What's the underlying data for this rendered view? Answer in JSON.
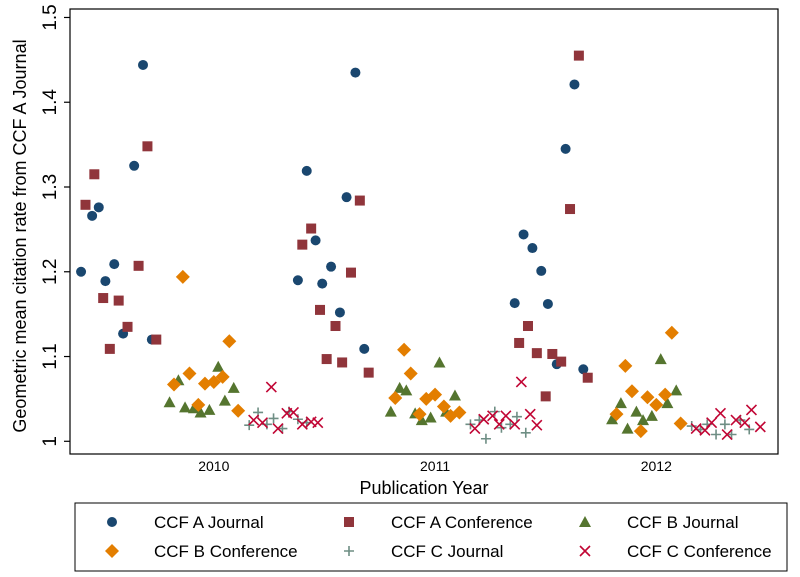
{
  "chart_data": {
    "type": "scatter",
    "xlabel": "Publication Year",
    "ylabel": "Geometric mean citation rate from CCF A Journal",
    "ylim": [
      0.985,
      1.51
    ],
    "xlim": [
      -0.15,
      3.05
    ],
    "yticks": [
      1,
      1.1,
      1.2,
      1.3,
      1.4,
      1.5
    ],
    "ytick_labels": [
      "1",
      "1.1",
      "1.2",
      "1.3",
      "1.4",
      "1.5"
    ],
    "categories": [
      "2010",
      "2011",
      "2012"
    ],
    "category_positions": [
      0.5,
      1.5,
      2.5
    ],
    "grid": false,
    "legend": "bottom",
    "series": [
      {
        "name": "CCF A Journal",
        "marker": "circle",
        "color": "#1a476f",
        "points": [
          [
            -0.1,
            1.2
          ],
          [
            -0.05,
            1.266
          ],
          [
            -0.02,
            1.276
          ],
          [
            0.01,
            1.189
          ],
          [
            0.05,
            1.209
          ],
          [
            0.09,
            1.127
          ],
          [
            0.14,
            1.325
          ],
          [
            0.18,
            1.444
          ],
          [
            0.22,
            1.12
          ],
          [
            0.88,
            1.19
          ],
          [
            0.92,
            1.319
          ],
          [
            0.96,
            1.237
          ],
          [
            0.99,
            1.186
          ],
          [
            1.03,
            1.206
          ],
          [
            1.07,
            1.152
          ],
          [
            1.1,
            1.288
          ],
          [
            1.14,
            1.435
          ],
          [
            1.18,
            1.109
          ],
          [
            1.86,
            1.163
          ],
          [
            1.9,
            1.244
          ],
          [
            1.94,
            1.228
          ],
          [
            1.98,
            1.201
          ],
          [
            2.01,
            1.162
          ],
          [
            2.05,
            1.091
          ],
          [
            2.09,
            1.345
          ],
          [
            2.13,
            1.421
          ],
          [
            2.17,
            1.085
          ]
        ]
      },
      {
        "name": "CCF A Conference",
        "marker": "square",
        "color": "#90353b",
        "points": [
          [
            -0.08,
            1.279
          ],
          [
            -0.04,
            1.315
          ],
          [
            0.0,
            1.169
          ],
          [
            0.03,
            1.109
          ],
          [
            0.07,
            1.166
          ],
          [
            0.11,
            1.135
          ],
          [
            0.16,
            1.207
          ],
          [
            0.2,
            1.348
          ],
          [
            0.24,
            1.12
          ],
          [
            0.9,
            1.232
          ],
          [
            0.94,
            1.251
          ],
          [
            0.98,
            1.155
          ],
          [
            1.01,
            1.097
          ],
          [
            1.05,
            1.136
          ],
          [
            1.08,
            1.093
          ],
          [
            1.12,
            1.199
          ],
          [
            1.16,
            1.284
          ],
          [
            1.2,
            1.081
          ],
          [
            1.88,
            1.116
          ],
          [
            1.92,
            1.136
          ],
          [
            1.96,
            1.104
          ],
          [
            2.0,
            1.053
          ],
          [
            2.03,
            1.103
          ],
          [
            2.07,
            1.094
          ],
          [
            2.11,
            1.274
          ],
          [
            2.15,
            1.455
          ],
          [
            2.19,
            1.075
          ]
        ]
      },
      {
        "name": "CCF B Journal",
        "marker": "triangle",
        "color": "#55752f",
        "points": [
          [
            0.3,
            1.046
          ],
          [
            0.34,
            1.072
          ],
          [
            0.37,
            1.04
          ],
          [
            0.41,
            1.039
          ],
          [
            0.44,
            1.034
          ],
          [
            0.48,
            1.037
          ],
          [
            0.52,
            1.088
          ],
          [
            0.55,
            1.048
          ],
          [
            0.59,
            1.063
          ],
          [
            1.3,
            1.035
          ],
          [
            1.34,
            1.063
          ],
          [
            1.37,
            1.06
          ],
          [
            1.41,
            1.033
          ],
          [
            1.44,
            1.025
          ],
          [
            1.48,
            1.028
          ],
          [
            1.52,
            1.093
          ],
          [
            1.55,
            1.035
          ],
          [
            1.59,
            1.054
          ],
          [
            2.3,
            1.026
          ],
          [
            2.34,
            1.045
          ],
          [
            2.37,
            1.015
          ],
          [
            2.41,
            1.035
          ],
          [
            2.44,
            1.025
          ],
          [
            2.48,
            1.03
          ],
          [
            2.52,
            1.097
          ],
          [
            2.55,
            1.045
          ],
          [
            2.59,
            1.06
          ]
        ]
      },
      {
        "name": "CCF B Conference",
        "marker": "diamond",
        "color": "#e37e00",
        "points": [
          [
            0.32,
            1.067
          ],
          [
            0.36,
            1.194
          ],
          [
            0.39,
            1.08
          ],
          [
            0.43,
            1.043
          ],
          [
            0.46,
            1.068
          ],
          [
            0.5,
            1.07
          ],
          [
            0.54,
            1.076
          ],
          [
            0.57,
            1.118
          ],
          [
            0.61,
            1.036
          ],
          [
            1.32,
            1.051
          ],
          [
            1.36,
            1.108
          ],
          [
            1.39,
            1.08
          ],
          [
            1.43,
            1.032
          ],
          [
            1.46,
            1.05
          ],
          [
            1.5,
            1.055
          ],
          [
            1.54,
            1.041
          ],
          [
            1.57,
            1.03
          ],
          [
            1.61,
            1.034
          ],
          [
            2.32,
            1.032
          ],
          [
            2.36,
            1.089
          ],
          [
            2.39,
            1.059
          ],
          [
            2.43,
            1.012
          ],
          [
            2.46,
            1.052
          ],
          [
            2.5,
            1.043
          ],
          [
            2.54,
            1.055
          ],
          [
            2.57,
            1.128
          ],
          [
            2.61,
            1.021
          ]
        ]
      },
      {
        "name": "CCF C Journal",
        "marker": "plus",
        "color": "#6e8e84",
        "points": [
          [
            0.66,
            1.019
          ],
          [
            0.7,
            1.034
          ],
          [
            0.74,
            1.02
          ],
          [
            0.77,
            1.027
          ],
          [
            0.81,
            1.015
          ],
          [
            0.84,
            1.035
          ],
          [
            0.88,
            1.026
          ],
          [
            0.92,
            1.022
          ],
          [
            1.66,
            1.02
          ],
          [
            1.7,
            1.025
          ],
          [
            1.73,
            1.003
          ],
          [
            1.77,
            1.035
          ],
          [
            1.8,
            1.016
          ],
          [
            1.84,
            1.02
          ],
          [
            1.87,
            1.029
          ],
          [
            1.91,
            1.01
          ],
          [
            2.66,
            1.018
          ],
          [
            2.7,
            1.014
          ],
          [
            2.73,
            1.02
          ],
          [
            2.77,
            1.008
          ],
          [
            2.81,
            1.02
          ],
          [
            2.84,
            1.008
          ],
          [
            2.88,
            1.025
          ],
          [
            2.92,
            1.014
          ]
        ]
      },
      {
        "name": "CCF C Conference",
        "marker": "x",
        "color": "#c10534",
        "points": [
          [
            0.68,
            1.025
          ],
          [
            0.72,
            1.022
          ],
          [
            0.76,
            1.064
          ],
          [
            0.79,
            1.015
          ],
          [
            0.83,
            1.033
          ],
          [
            0.86,
            1.034
          ],
          [
            0.9,
            1.02
          ],
          [
            0.94,
            1.023
          ],
          [
            0.97,
            1.022
          ],
          [
            1.68,
            1.015
          ],
          [
            1.72,
            1.026
          ],
          [
            1.76,
            1.03
          ],
          [
            1.79,
            1.02
          ],
          [
            1.82,
            1.03
          ],
          [
            1.86,
            1.02
          ],
          [
            1.89,
            1.07
          ],
          [
            1.93,
            1.032
          ],
          [
            1.96,
            1.019
          ],
          [
            2.68,
            1.015
          ],
          [
            2.72,
            1.013
          ],
          [
            2.75,
            1.022
          ],
          [
            2.79,
            1.033
          ],
          [
            2.82,
            1.008
          ],
          [
            2.86,
            1.025
          ],
          [
            2.9,
            1.022
          ],
          [
            2.93,
            1.037
          ],
          [
            2.97,
            1.017
          ]
        ]
      }
    ]
  }
}
